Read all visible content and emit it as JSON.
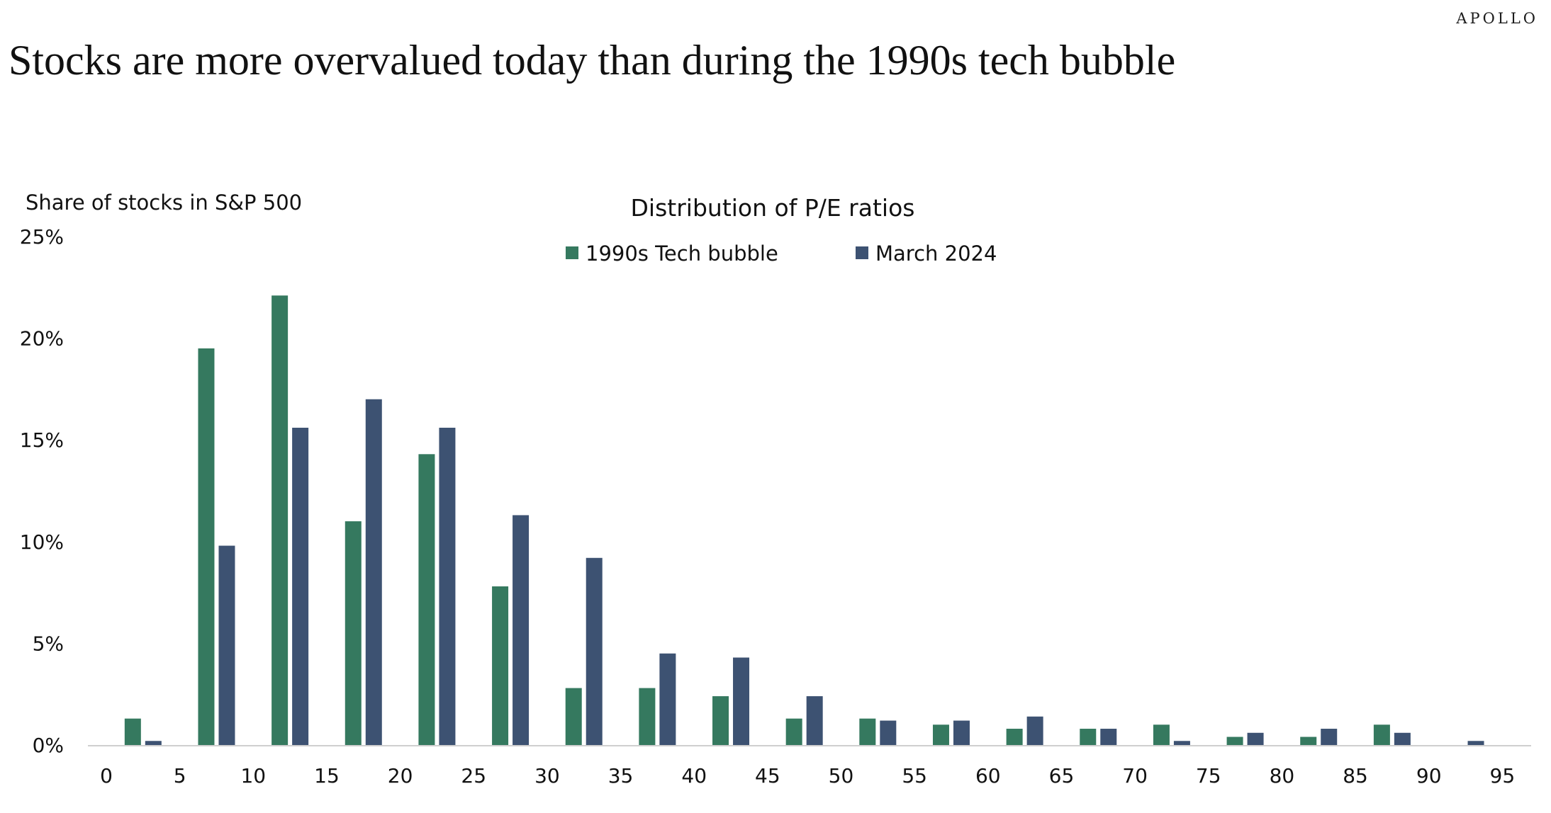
{
  "brand": "APOLLO",
  "title": "Stocks are more overvalued today than during the 1990s tech bubble",
  "colors": {
    "series_1990s": "#35795F",
    "series_2024": "#3D5272",
    "axis": "#cfcfcf",
    "text": "#111111"
  },
  "chart_data": {
    "type": "bar",
    "title": "Distribution of P/E ratios",
    "ylabel": "Share of stocks in S&P 500",
    "xlabel": "",
    "x_ticks": [
      0,
      5,
      10,
      15,
      20,
      25,
      30,
      35,
      40,
      45,
      50,
      55,
      60,
      65,
      70,
      75,
      80,
      85,
      90,
      95
    ],
    "y_ticks": [
      "0%",
      "5%",
      "10%",
      "15%",
      "20%",
      "25%"
    ],
    "ylim": [
      0,
      25
    ],
    "xlim": [
      0,
      95
    ],
    "grid": false,
    "legend_position": "top-center",
    "bins": [
      0,
      5,
      10,
      15,
      20,
      25,
      30,
      35,
      40,
      45,
      50,
      55,
      60,
      65,
      70,
      75,
      80,
      85,
      90
    ],
    "series": [
      {
        "name": "1990s Tech bubble",
        "values": [
          1.3,
          19.5,
          22.1,
          11.0,
          14.3,
          7.8,
          2.8,
          2.8,
          2.4,
          1.3,
          1.3,
          1.0,
          0.8,
          0.8,
          1.0,
          0.4,
          0.4,
          1.0,
          0.0
        ]
      },
      {
        "name": "March 2024",
        "values": [
          0.2,
          9.8,
          15.6,
          17.0,
          15.6,
          11.3,
          9.2,
          4.5,
          4.3,
          2.4,
          1.2,
          1.2,
          1.4,
          0.8,
          0.2,
          0.6,
          0.8,
          0.6,
          0.2
        ]
      }
    ]
  }
}
